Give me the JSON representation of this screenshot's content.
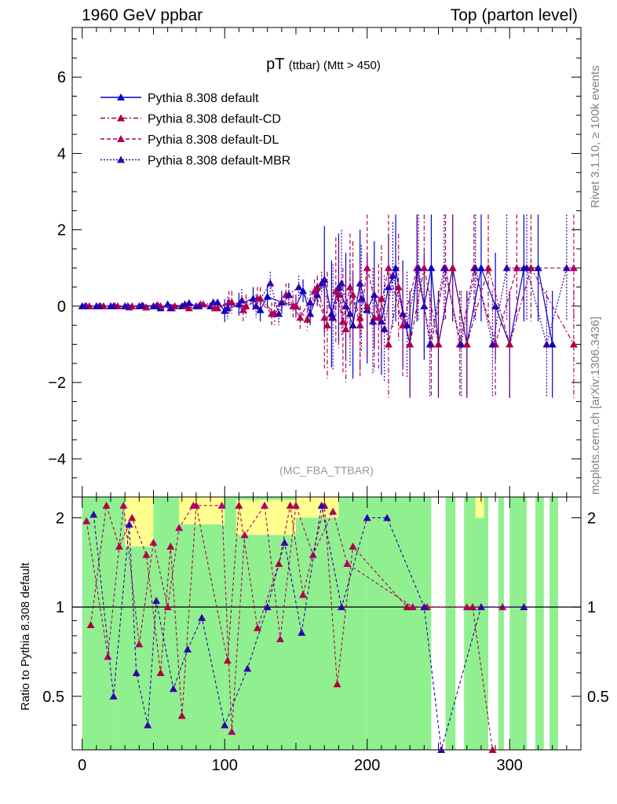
{
  "header": {
    "left": "1960 GeV ppbar",
    "right": "Top (parton level)"
  },
  "side": {
    "rivet": "Rivet 3.1.10, ≥ 100k events",
    "mcplots": "mcplots.cern.ch [arXiv:1306.3436]"
  },
  "chart_data": [
    {
      "type": "line",
      "title": "pT",
      "title_sub": "(ttbar) (Mtt > 450)",
      "watermark": "(MC_FBA_TTBAR)",
      "xlim": [
        -7,
        350
      ],
      "ylim": [
        -5,
        7.3
      ],
      "yticks": [
        -4,
        -2,
        0,
        2,
        4,
        6
      ],
      "legend_position": "top-left",
      "grid": false,
      "series": [
        {
          "name": "Pythia 8.308 default",
          "color": "#0000cc",
          "dash": "none",
          "points": [
            [
              0,
              0
            ],
            [
              10,
              0
            ],
            [
              20,
              0
            ],
            [
              30,
              0
            ],
            [
              40,
              0
            ],
            [
              50,
              0
            ],
            [
              55,
              -0.05
            ],
            [
              60,
              0.05
            ],
            [
              70,
              0
            ],
            [
              75,
              0.08
            ],
            [
              80,
              0
            ],
            [
              90,
              0
            ],
            [
              95,
              0.1
            ],
            [
              100,
              -0.12
            ],
            [
              110,
              0.05
            ],
            [
              120,
              0.2
            ],
            [
              125,
              -0.1
            ],
            [
              130,
              0.25
            ],
            [
              140,
              0.1
            ],
            [
              150,
              0
            ],
            [
              155,
              0.4
            ],
            [
              160,
              -0.2
            ],
            [
              165,
              0.3
            ],
            [
              170,
              0.7
            ],
            [
              175,
              -0.2
            ],
            [
              180,
              0.5
            ],
            [
              185,
              0
            ],
            [
              190,
              -0.5
            ],
            [
              195,
              0.6
            ],
            [
              200,
              -0.1
            ],
            [
              205,
              0.3
            ],
            [
              210,
              -0.4
            ],
            [
              215,
              0.5
            ],
            [
              220,
              1
            ],
            [
              225,
              -0.2
            ],
            [
              230,
              -1
            ],
            [
              235,
              1
            ],
            [
              240,
              0
            ],
            [
              245,
              1
            ],
            [
              250,
              -1
            ],
            [
              260,
              1
            ],
            [
              270,
              -1
            ],
            [
              280,
              1
            ],
            [
              290,
              0
            ],
            [
              300,
              -1
            ],
            [
              310,
              1
            ],
            [
              320,
              1
            ],
            [
              330,
              -1
            ]
          ]
        },
        {
          "name": "Pythia 8.308 default-CD",
          "color": "#b00040",
          "dash": "6,3,2,3",
          "points": [
            [
              5,
              0
            ],
            [
              15,
              0
            ],
            [
              25,
              0
            ],
            [
              35,
              0
            ],
            [
              45,
              -0.03
            ],
            [
              55,
              0
            ],
            [
              65,
              0
            ],
            [
              75,
              -0.05
            ],
            [
              85,
              0.05
            ],
            [
              95,
              -0.05
            ],
            [
              105,
              0.1
            ],
            [
              115,
              0
            ],
            [
              125,
              0.2
            ],
            [
              135,
              -0.2
            ],
            [
              145,
              0.3
            ],
            [
              150,
              0
            ],
            [
              158,
              -0.35
            ],
            [
              165,
              0.5
            ],
            [
              172,
              -0.5
            ],
            [
              180,
              0.3
            ],
            [
              185,
              -0.6
            ],
            [
              190,
              0.3
            ],
            [
              195,
              -0.3
            ],
            [
              200,
              0
            ],
            [
              205,
              -0.3
            ],
            [
              210,
              0.2
            ],
            [
              215,
              -1
            ],
            [
              222,
              0.5
            ],
            [
              230,
              -1
            ],
            [
              240,
              1
            ],
            [
              250,
              -1
            ],
            [
              260,
              1
            ],
            [
              270,
              -1
            ],
            [
              285,
              1
            ],
            [
              300,
              -1
            ],
            [
              315,
              1
            ],
            [
              345,
              -1
            ]
          ]
        },
        {
          "name": "Pythia 8.308 default-DL",
          "color": "#b00060",
          "dash": "5,3",
          "points": [
            [
              3,
              0
            ],
            [
              13,
              0
            ],
            [
              23,
              0
            ],
            [
              33,
              -0.03
            ],
            [
              43,
              0
            ],
            [
              53,
              0.03
            ],
            [
              63,
              -0.05
            ],
            [
              73,
              0
            ],
            [
              83,
              0.05
            ],
            [
              93,
              -0.05
            ],
            [
              103,
              0.1
            ],
            [
              113,
              -0.1
            ],
            [
              123,
              0.2
            ],
            [
              133,
              -0.2
            ],
            [
              143,
              0.3
            ],
            [
              148,
              0
            ],
            [
              153,
              -0.3
            ],
            [
              163,
              0.4
            ],
            [
              170,
              -0.3
            ],
            [
              178,
              0.4
            ],
            [
              183,
              -0.4
            ],
            [
              188,
              0.5
            ],
            [
              195,
              -0.5
            ],
            [
              200,
              1
            ],
            [
              208,
              -0.3
            ],
            [
              215,
              1
            ],
            [
              225,
              -0.5
            ],
            [
              235,
              1
            ],
            [
              245,
              -1
            ],
            [
              255,
              1
            ],
            [
              265,
              -1
            ],
            [
              275,
              1
            ],
            [
              290,
              -1
            ],
            [
              305,
              1
            ],
            [
              345,
              1
            ]
          ]
        },
        {
          "name": "Pythia 8.308 default-MBR",
          "color": "#3300aa",
          "dash": "2,2",
          "points": [
            [
              2,
              0
            ],
            [
              12,
              0
            ],
            [
              22,
              0
            ],
            [
              32,
              0
            ],
            [
              42,
              0.02
            ],
            [
              52,
              0
            ],
            [
              62,
              -0.05
            ],
            [
              72,
              0.05
            ],
            [
              82,
              0
            ],
            [
              92,
              0.1
            ],
            [
              102,
              -0.05
            ],
            [
              112,
              0.15
            ],
            [
              122,
              0
            ],
            [
              132,
              0.6
            ],
            [
              138,
              -0.2
            ],
            [
              145,
              0.3
            ],
            [
              152,
              0.5
            ],
            [
              160,
              0.1
            ],
            [
              168,
              0.6
            ],
            [
              176,
              -0.3
            ],
            [
              182,
              0.6
            ],
            [
              188,
              -0.2
            ],
            [
              196,
              0.2
            ],
            [
              204,
              -0.4
            ],
            [
              212,
              -0.6
            ],
            [
              218,
              0.8
            ],
            [
              228,
              -0.5
            ],
            [
              236,
              1
            ],
            [
              244,
              -1
            ],
            [
              254,
              1
            ],
            [
              266,
              -1
            ],
            [
              276,
              1
            ],
            [
              288,
              -1
            ],
            [
              298,
              1
            ],
            [
              312,
              1
            ],
            [
              326,
              -1
            ],
            [
              340,
              1
            ]
          ]
        }
      ]
    },
    {
      "type": "line",
      "ylabel": "Ratio to Pythia 8.308 default",
      "xlim": [
        -7,
        350
      ],
      "ylim": [
        0.33,
        2.35
      ],
      "yticks": [
        0.5,
        1,
        2
      ],
      "xticks": [
        0,
        100,
        200,
        300
      ],
      "reference": 1,
      "series": [
        {
          "name": "Pythia 8.308 default-CD",
          "color": "#b00040",
          "points": [
            [
              6,
              0.87
            ],
            [
              17,
              2.2
            ],
            [
              26,
              1.6
            ],
            [
              35,
              2.0
            ],
            [
              45,
              1.5
            ],
            [
              55,
              0.6
            ],
            [
              62,
              1.6
            ],
            [
              70,
              0.43
            ],
            [
              80,
              2.2
            ],
            [
              102,
              0.66
            ],
            [
              110,
              2.2
            ],
            [
              123,
              0.85
            ],
            [
              138,
              1.4
            ],
            [
              146,
              2.2
            ],
            [
              155,
              1.1
            ],
            [
              170,
              2.2
            ],
            [
              179,
              0.55
            ],
            [
              190,
              1.6
            ],
            [
              228,
              1.0
            ],
            [
              274,
              1.0
            ],
            [
              288,
              0.33
            ]
          ]
        },
        {
          "name": "Pythia 8.308 default-DL",
          "color": "#b00060",
          "points": [
            [
              3,
              1.95
            ],
            [
              18,
              0.68
            ],
            [
              29,
              2.2
            ],
            [
              40,
              0.75
            ],
            [
              50,
              1.65
            ],
            [
              60,
              1.0
            ],
            [
              68,
              1.85
            ],
            [
              78,
              2.2
            ],
            [
              98,
              2.2
            ],
            [
              105,
              0.38
            ],
            [
              114,
              1.75
            ],
            [
              128,
              2.2
            ],
            [
              139,
              0.78
            ],
            [
              150,
              2.2
            ],
            [
              162,
              1.5
            ],
            [
              176,
              2.1
            ],
            [
              186,
              1.4
            ],
            [
              232,
              1.0
            ],
            [
              242,
              1.0
            ],
            [
              270,
              1.0
            ],
            [
              295,
              1.0
            ]
          ]
        },
        {
          "name": "Pythia 8.308 default-MBR",
          "color": "#3300aa",
          "points": [
            [
              8,
              2.05
            ],
            [
              22,
              0.5
            ],
            [
              33,
              1.9
            ],
            [
              38,
              0.6
            ],
            [
              46,
              0.4
            ],
            [
              52,
              1.05
            ],
            [
              64,
              0.53
            ],
            [
              74,
              0.72
            ],
            [
              84,
              0.92
            ],
            [
              100,
              0.4
            ],
            [
              116,
              0.62
            ],
            [
              130,
              1.0
            ],
            [
              142,
              1.65
            ],
            [
              154,
              0.82
            ],
            [
              168,
              2.2
            ],
            [
              182,
              1.0
            ],
            [
              200,
              2.0
            ],
            [
              214,
              2.0
            ],
            [
              240,
              1.0
            ],
            [
              252,
              0.33
            ],
            [
              280,
              1.0
            ],
            [
              310,
              1.0
            ]
          ]
        }
      ]
    }
  ]
}
